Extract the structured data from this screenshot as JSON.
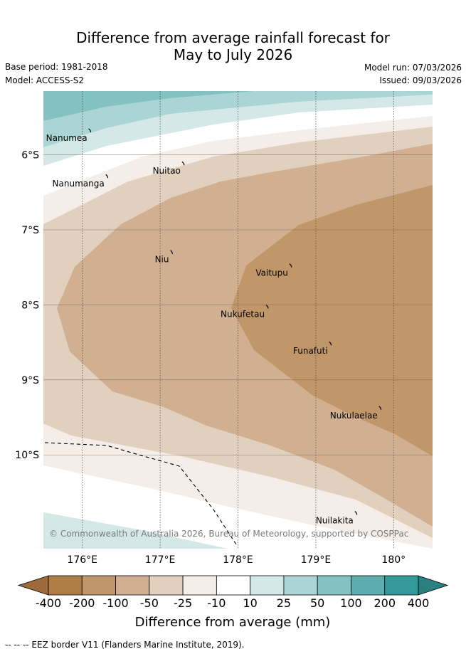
{
  "title": {
    "line1": "Difference from average rainfall forecast for",
    "line2": "May to July 2026"
  },
  "meta": {
    "base_period": "Base period: 1981-2018",
    "model": "Model: ACCESS-S2",
    "model_run": "Model run: 07/03/2026",
    "issued": "Issued: 09/03/2026"
  },
  "map": {
    "lon_range": [
      175.5,
      180.5
    ],
    "lat_range": [
      -5.15,
      -11.25
    ],
    "lon_ticks": [
      {
        "value": 176,
        "label": "176°E"
      },
      {
        "value": 177,
        "label": "177°E"
      },
      {
        "value": 178,
        "label": "178°E"
      },
      {
        "value": 179,
        "label": "179°E"
      },
      {
        "value": 180,
        "label": "180°"
      }
    ],
    "lat_ticks": [
      {
        "value": -6,
        "label": "6°S"
      },
      {
        "value": -7,
        "label": "7°S"
      },
      {
        "value": -8,
        "label": "8°S"
      },
      {
        "value": -9,
        "label": "9°S"
      },
      {
        "value": -10,
        "label": "10°S"
      }
    ],
    "islands": [
      {
        "name": "Nanumea",
        "lon": 176.1,
        "lat": -5.68
      },
      {
        "name": "Nuitao",
        "lon": 177.3,
        "lat": -6.12
      },
      {
        "name": "Nanumanga",
        "lon": 176.32,
        "lat": -6.29
      },
      {
        "name": "Niu",
        "lon": 177.15,
        "lat": -7.3
      },
      {
        "name": "Vaitupu",
        "lon": 178.68,
        "lat": -7.48
      },
      {
        "name": "Nukufetau",
        "lon": 178.38,
        "lat": -8.03
      },
      {
        "name": "Funafuti",
        "lon": 179.19,
        "lat": -8.52
      },
      {
        "name": "Nukulaelae",
        "lon": 179.83,
        "lat": -9.38
      },
      {
        "name": "Nuilakita",
        "lon": 179.52,
        "lat": -10.78
      }
    ],
    "copyright": "© Commonwealth of Australia 2026, Bureau of Meteorology, supported by COSPPac"
  },
  "colorbar": {
    "colors": [
      "#b07c45",
      "#c19668",
      "#d1b091",
      "#e2d0be",
      "#f4ede8",
      "#ffffff",
      "#d4e8e7",
      "#aad4d5",
      "#84c1c1",
      "#5badae",
      "#33999a"
    ],
    "low_color": "#9e6a3a",
    "high_color": "#2a7f80",
    "labels": [
      "-400",
      "-200",
      "-100",
      "-50",
      "-25",
      "-10",
      "10",
      "25",
      "50",
      "100",
      "200",
      "400"
    ],
    "title": "Difference from average (mm)"
  },
  "footer": "-- -- -- EEZ border V11 (Flanders Marine Institute, 2019)."
}
